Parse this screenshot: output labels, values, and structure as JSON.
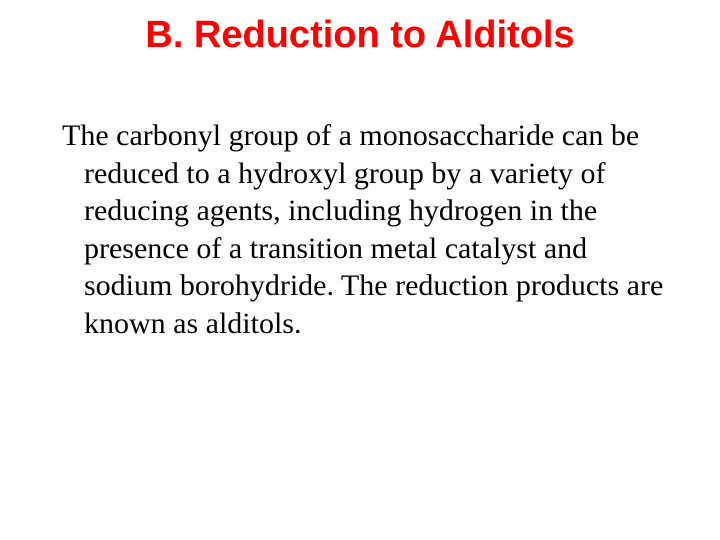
{
  "slide": {
    "title": "B. Reduction to Alditols",
    "title_color": "#ff0000",
    "title_fontsize": 38,
    "body": "The carbonyl group of a monosaccharide can be reduced to a hydroxyl group by a variety of reducing agents, including hydrogen in the presence of a transition metal catalyst and sodium borohydride. The reduction products are known as alditols.",
    "body_color": "#000000",
    "body_fontsize": 30,
    "body_lineheight": 1.25,
    "background_color": "#ffffff"
  }
}
